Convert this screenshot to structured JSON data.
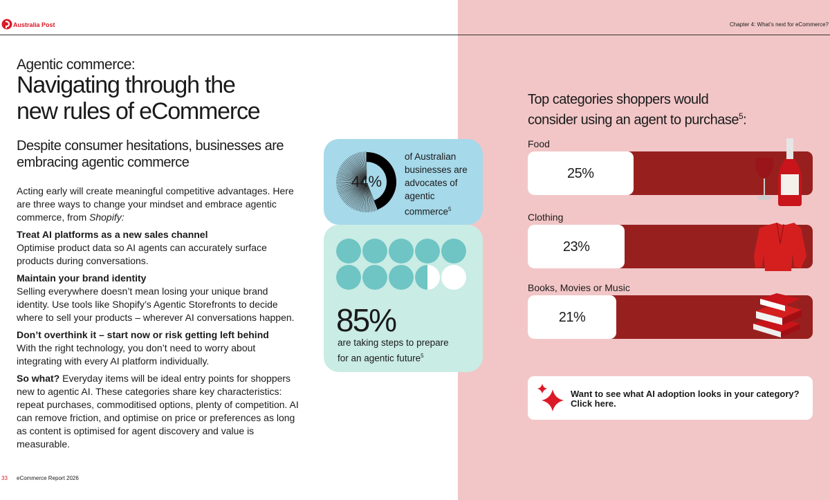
{
  "header": {
    "brand": "Australia Post",
    "chapter": "Chapter 4: What’s next for eCommerce?"
  },
  "intro": {
    "kicker": "Agentic commerce:",
    "title": "Navigating through the new rules of eCommerce",
    "subtitle": "Despite consumer hesitations, businesses are embracing agentic commerce"
  },
  "body": {
    "lead": "Acting early will create meaningful competitive advantages. Here are three ways to change your mindset and embrace agentic commerce, from ",
    "lead_source": "Shopify:",
    "points": [
      {
        "heading": "Treat AI platforms as a new sales channel",
        "text": "Optimise product data so AI agents can accurately surface products during conversations."
      },
      {
        "heading": "Maintain your brand identity",
        "text": "Selling everywhere doesn’t mean losing your unique brand identity. Use tools like Shopify’s Agentic Storefronts to decide where to sell your products – wherever AI conversations happen."
      },
      {
        "heading": "Don’t overthink it – start now or risk getting left behind",
        "text": "With the right technology, you don’t need to worry about integrating with every AI platform individually."
      }
    ],
    "so_what": {
      "label": "So what?",
      "text": " Everyday items will be ideal entry points for shoppers new to agentic AI. These categories share key characteristics: repeat purchases, commoditised options, plenty of competition. AI can remove friction, and optimise on price or preferences as long as content is optimised for agent discovery and value is measurable."
    }
  },
  "stats": [
    {
      "value": 44,
      "label": "44%",
      "text": "of Australian businesses are advocates of agentic commerce",
      "footnote": "5"
    },
    {
      "value": 85,
      "label": "85%",
      "text": "are taking steps to prepare for an agentic future",
      "footnote": "5"
    }
  ],
  "categories_panel": {
    "title": "Top categories shoppers would consider using an agent to purchase",
    "footnote": "5",
    "title_end": ":",
    "items": [
      {
        "name": "Food",
        "value": 25,
        "label": "25%"
      },
      {
        "name": "Clothing",
        "value": 23,
        "label": "23%"
      },
      {
        "name": "Books, Movies or Music",
        "value": 21,
        "label": "21%"
      }
    ]
  },
  "cta": {
    "text": "Want to see what AI adoption looks in your category?",
    "link": "Click here."
  },
  "footer": {
    "page": "33",
    "title": "eCommerce Report 2026"
  }
}
